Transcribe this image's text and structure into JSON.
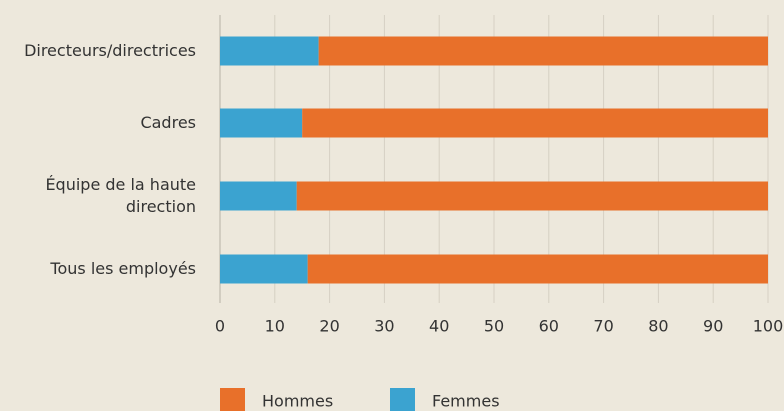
{
  "chart_data": {
    "type": "stacked-barh",
    "categories": [
      "Directeurs/directrices",
      "Cadres",
      "Équipe de la haute direction",
      "Tous les employés"
    ],
    "series": [
      {
        "name": "Femmes",
        "color": "#3ba3d0",
        "values": [
          18,
          15,
          14,
          16
        ]
      },
      {
        "name": "Hommes",
        "color": "#e8702a",
        "values": [
          82,
          85,
          86,
          84
        ]
      }
    ],
    "xlim": [
      0,
      100
    ],
    "xticks": [
      0,
      10,
      20,
      30,
      40,
      50,
      60,
      70,
      80,
      90,
      100
    ],
    "grid": true,
    "legend": "bottom"
  }
}
